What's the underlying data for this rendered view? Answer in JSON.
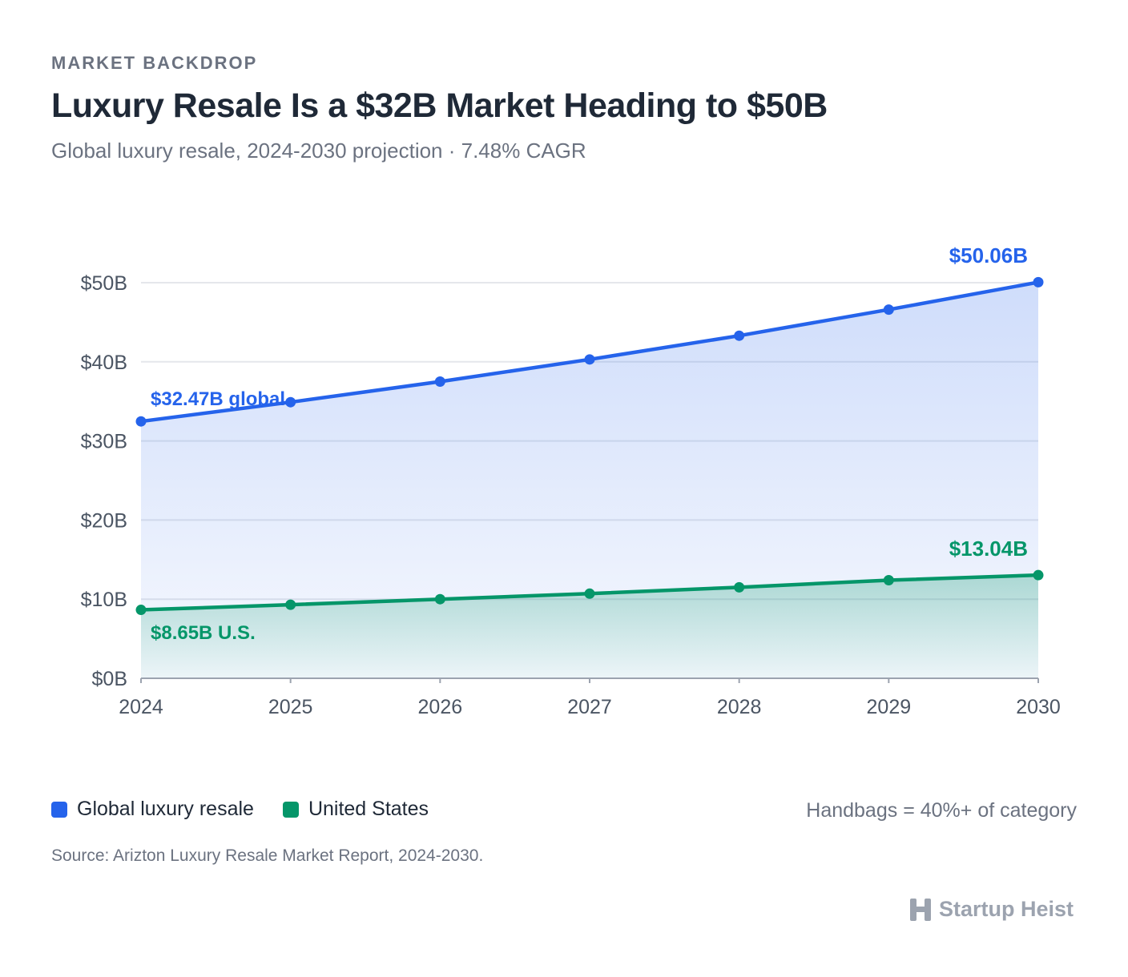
{
  "header": {
    "eyebrow": "MARKET BACKDROP",
    "title": "Luxury Resale Is a $32B Market Heading to $50B",
    "subtitle": "Global luxury resale, 2024-2030 projection · 7.48% CAGR"
  },
  "chart_data": {
    "type": "area",
    "x": [
      2024,
      2025,
      2026,
      2027,
      2028,
      2029,
      2030
    ],
    "ylim": [
      0,
      50
    ],
    "y_ticks": [
      "$0B",
      "$10B",
      "$20B",
      "$30B",
      "$40B",
      "$50B"
    ],
    "x_ticks": [
      "2024",
      "2025",
      "2026",
      "2027",
      "2028",
      "2029",
      "2030"
    ],
    "grid": true,
    "series": [
      {
        "name": "Global luxury resale",
        "color": "#2563eb",
        "values": [
          32.47,
          34.9,
          37.5,
          40.3,
          43.3,
          46.6,
          50.06
        ],
        "start_label": "$32.47B global",
        "end_label": "$50.06B"
      },
      {
        "name": "United States",
        "color": "#059669",
        "values": [
          8.65,
          9.3,
          10.0,
          10.7,
          11.5,
          12.4,
          13.04
        ],
        "start_label": "$8.65B U.S.",
        "end_label": "$13.04B"
      }
    ]
  },
  "legend": {
    "items": [
      {
        "label": "Global luxury resale",
        "color": "#2563eb"
      },
      {
        "label": "United States",
        "color": "#059669"
      }
    ],
    "note": "Handbags = 40%+ of category"
  },
  "footer": {
    "source": "Source: Arizton Luxury Resale Market Report, 2024-2030.",
    "brand": "Startup Heist",
    "brand_icon": "startup-heist-logo-icon"
  }
}
